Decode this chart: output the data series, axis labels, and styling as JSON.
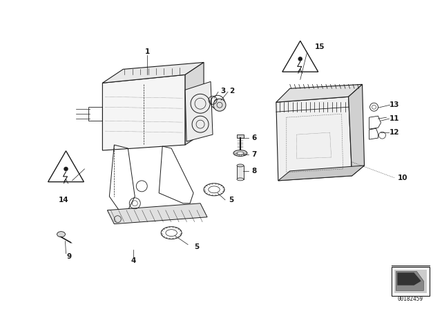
{
  "bg_color": "#ffffff",
  "line_color": "#1a1a1a",
  "fig_width": 6.4,
  "fig_height": 4.48,
  "dpi": 100,
  "doc_number": "00182459"
}
